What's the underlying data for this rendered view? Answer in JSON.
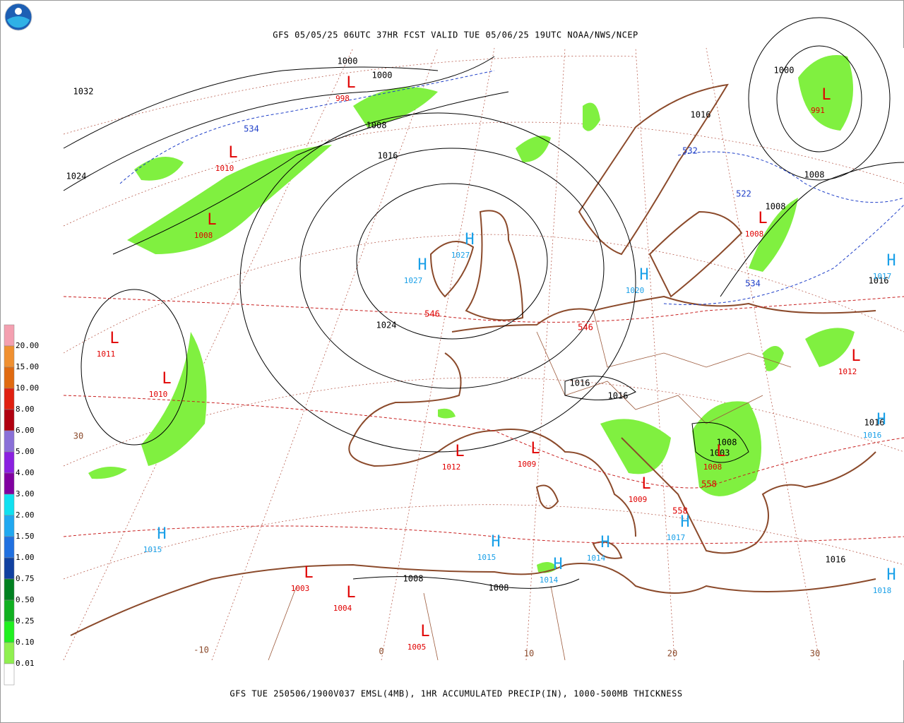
{
  "header": {
    "title": "GFS 05/05/25 06UTC 37HR FCST VALID TUE 05/06/25 19UTC NOAA/NWS/NCEP"
  },
  "footer": {
    "caption": "GFS TUE 250506/1900V037 EMSL(4MB), 1HR ACCUMULATED PRECIP(IN), 1000-500MB THICKNESS"
  },
  "legend": {
    "labels": [
      "20.00",
      "15.00",
      "10.00",
      "8.00",
      "6.00",
      "5.00",
      "4.00",
      "3.00",
      "2.00",
      "1.50",
      "1.00",
      "0.75",
      "0.50",
      "0.25",
      "0.10",
      "0.01"
    ],
    "colors": [
      "#f4a0b0",
      "#f09030",
      "#e06a10",
      "#e02010",
      "#b00010",
      "#8a70d8",
      "#8a20e0",
      "#8000a0",
      "#10e0f0",
      "#20a8f0",
      "#2070e0",
      "#1040a0",
      "#008020",
      "#10b020",
      "#20f020",
      "#90f050",
      "#ffffff"
    ]
  },
  "isobars": [
    "1000",
    "1000",
    "1032",
    "1008",
    "1016",
    "1024",
    "1024",
    "1016",
    "1016",
    "1000",
    "1016",
    "1008",
    "1008",
    "1016",
    "1008",
    "1003",
    "1016",
    "1008",
    "1008",
    "1016"
  ],
  "high_symbol": "H",
  "low_symbol": "L",
  "highs": [
    "1027",
    "1027",
    "1020",
    "1017",
    "1016",
    "1015",
    "1015",
    "1014",
    "1014",
    "1017",
    "1018"
  ],
  "lows": [
    "998",
    "1010",
    "1008",
    "1011",
    "1010",
    "1012",
    "1012",
    "1009",
    "1009",
    "1008",
    "991",
    "1003",
    "1004",
    "1005",
    "1008"
  ],
  "thickness_blue": [
    "534",
    "532",
    "522",
    "534"
  ],
  "thickness_red": [
    "546",
    "546",
    "558",
    "558"
  ],
  "graticule_labels": [
    "30",
    "-10",
    "0",
    "10",
    "20",
    "30"
  ]
}
